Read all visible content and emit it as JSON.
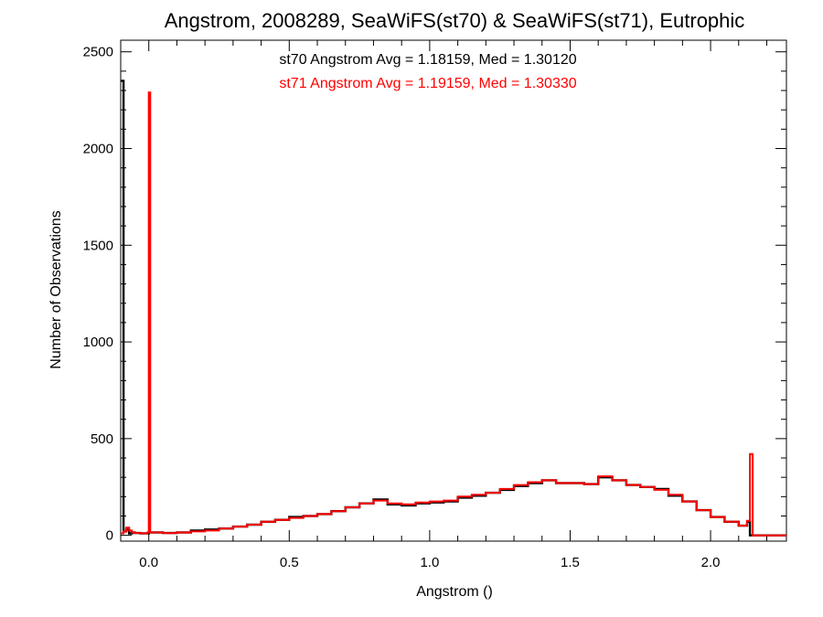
{
  "chart_data": {
    "type": "step-histogram",
    "title": "Angstrom, 2008289, SeaWiFS(st70) & SeaWiFS(st71), Eutrophic",
    "xlabel": "Angstrom ()",
    "ylabel": "Number of Observations",
    "xlim": [
      -0.1,
      2.27
    ],
    "ylim": [
      -30,
      2560
    ],
    "xticks": [
      0.0,
      0.5,
      1.0,
      1.5,
      2.0
    ],
    "xtick_labels": [
      "0.0",
      "0.5",
      "1.0",
      "1.5",
      "2.0"
    ],
    "yticks": [
      0,
      500,
      1000,
      1500,
      2000,
      2500
    ],
    "ytick_labels": [
      "0",
      "500",
      "1000",
      "1500",
      "2000",
      "2500"
    ],
    "grid": false,
    "annotations": [
      {
        "text": "st70 Angstrom Avg = 1.18159, Med = 1.30120",
        "color": "#000000"
      },
      {
        "text": "st71 Angstrom Avg = 1.19159, Med = 1.30330",
        "color": "#ff0000"
      }
    ],
    "series": [
      {
        "color": "#000000",
        "x": [
          -0.1,
          -0.09,
          -0.08,
          -0.07,
          -0.06,
          -0.05,
          -0.03,
          0.0,
          0.05,
          0.1,
          0.15,
          0.2,
          0.25,
          0.3,
          0.35,
          0.4,
          0.45,
          0.5,
          0.55,
          0.6,
          0.65,
          0.7,
          0.75,
          0.8,
          0.85,
          0.9,
          0.95,
          1.0,
          1.05,
          1.1,
          1.15,
          1.2,
          1.25,
          1.3,
          1.35,
          1.4,
          1.45,
          1.5,
          1.55,
          1.6,
          1.65,
          1.7,
          1.75,
          1.8,
          1.85,
          1.9,
          1.95,
          2.0,
          2.05,
          2.1,
          2.13,
          2.14,
          2.15,
          2.27
        ],
        "y": [
          2350,
          20,
          30,
          10,
          15,
          12,
          10,
          15,
          12,
          15,
          25,
          30,
          35,
          45,
          55,
          70,
          80,
          95,
          100,
          110,
          125,
          145,
          165,
          185,
          160,
          155,
          165,
          170,
          175,
          195,
          205,
          220,
          235,
          255,
          270,
          285,
          270,
          270,
          265,
          300,
          285,
          260,
          250,
          240,
          205,
          175,
          130,
          95,
          70,
          50,
          70,
          0,
          0,
          0
        ]
      },
      {
        "color": "#ff0000",
        "x": [
          -0.1,
          -0.09,
          -0.08,
          -0.07,
          -0.06,
          -0.05,
          -0.03,
          -0.005,
          0.0,
          0.005,
          0.05,
          0.1,
          0.15,
          0.2,
          0.25,
          0.3,
          0.35,
          0.4,
          0.45,
          0.5,
          0.55,
          0.6,
          0.65,
          0.7,
          0.75,
          0.8,
          0.85,
          0.9,
          0.95,
          1.0,
          1.05,
          1.1,
          1.15,
          1.2,
          1.25,
          1.3,
          1.35,
          1.4,
          1.45,
          1.5,
          1.55,
          1.6,
          1.65,
          1.7,
          1.75,
          1.8,
          1.85,
          1.9,
          1.95,
          2.0,
          2.05,
          2.1,
          2.13,
          2.14,
          2.15,
          2.27
        ],
        "y": [
          10,
          20,
          40,
          25,
          15,
          12,
          10,
          15,
          2290,
          15,
          12,
          15,
          20,
          25,
          35,
          45,
          55,
          70,
          80,
          90,
          100,
          110,
          125,
          145,
          165,
          180,
          165,
          160,
          170,
          175,
          180,
          200,
          210,
          220,
          240,
          260,
          275,
          285,
          270,
          270,
          265,
          305,
          285,
          260,
          250,
          235,
          210,
          175,
          130,
          95,
          70,
          50,
          75,
          420,
          0,
          0
        ]
      }
    ]
  }
}
